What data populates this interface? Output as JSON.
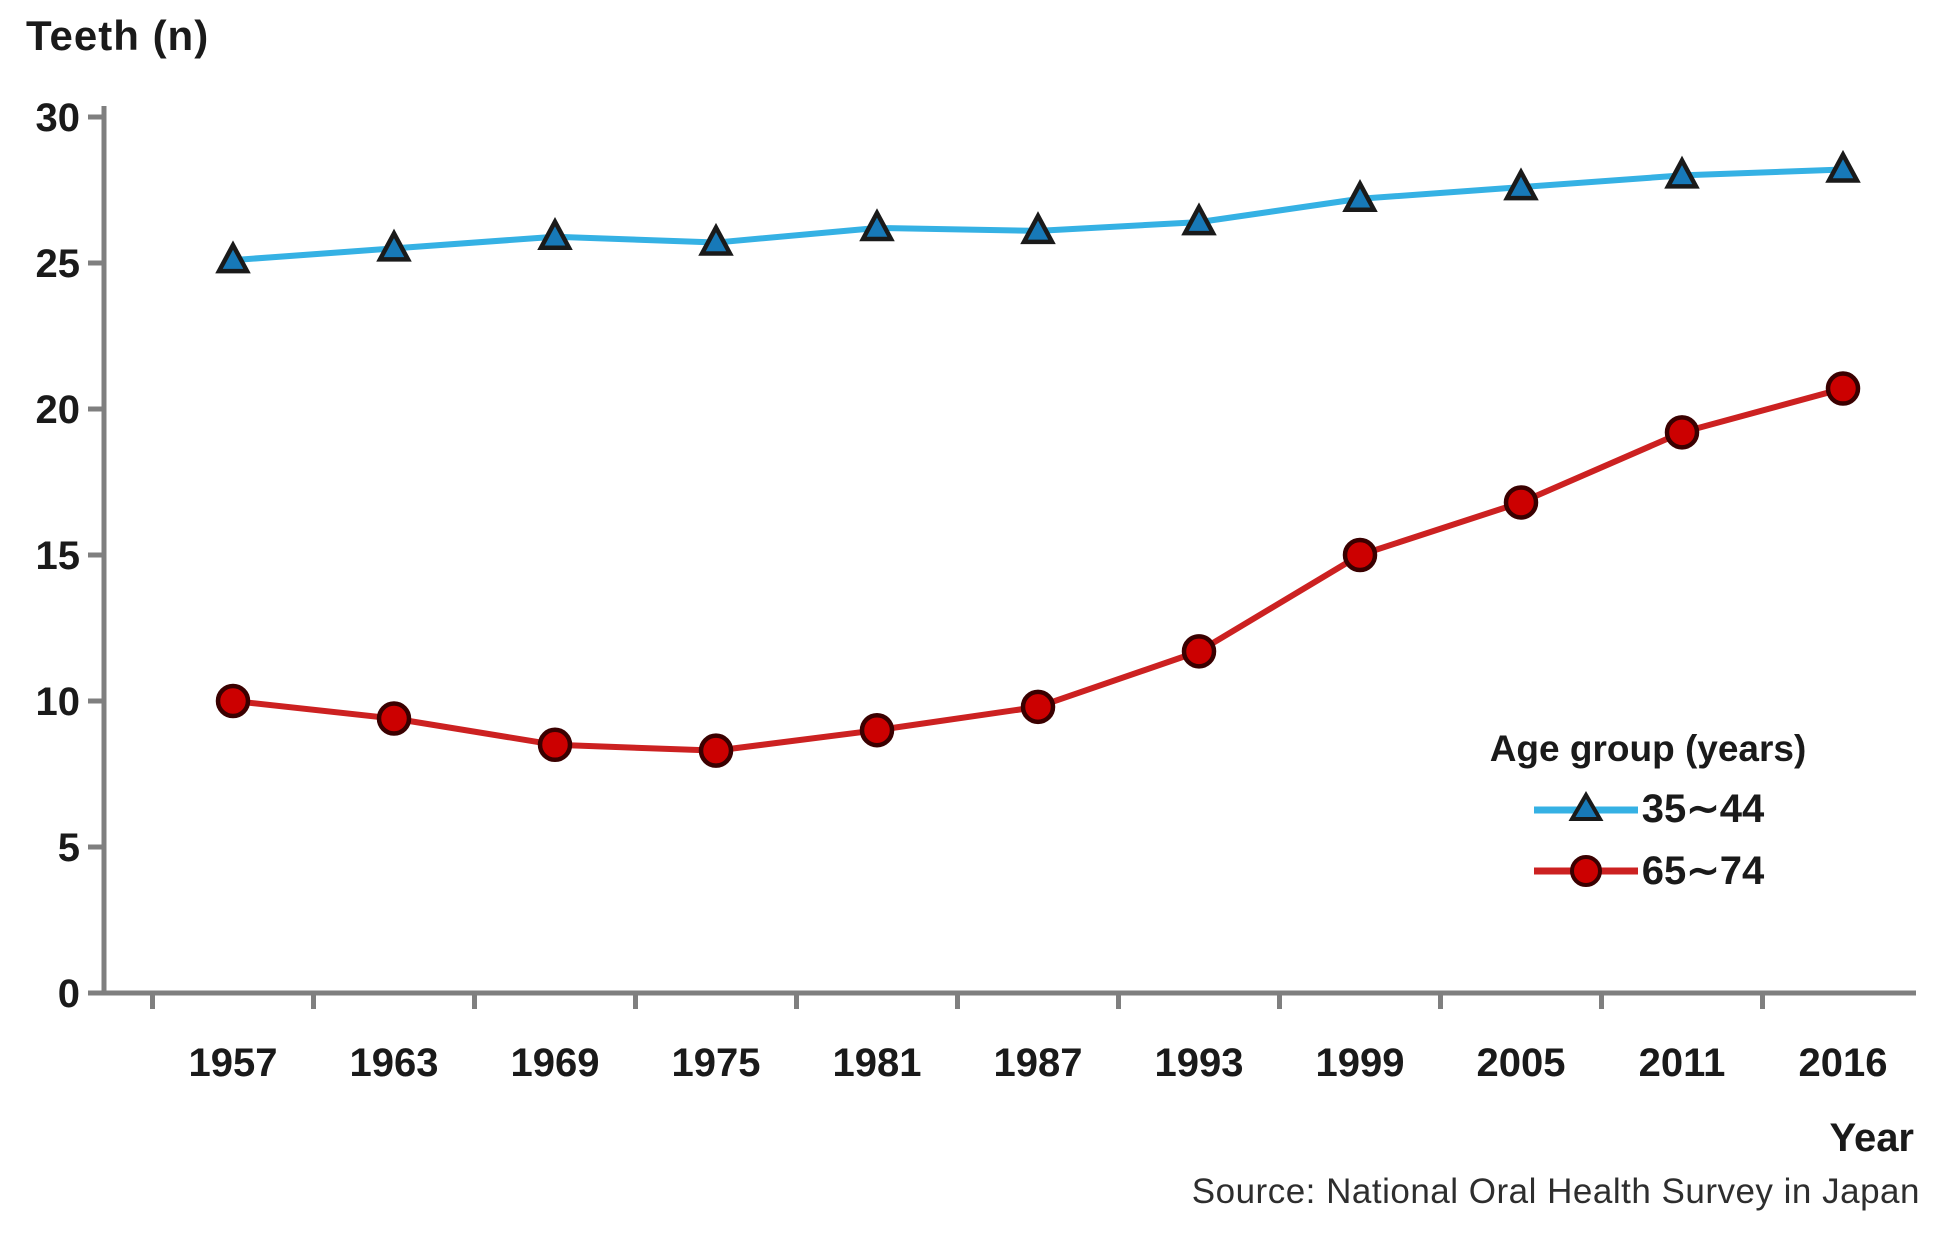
{
  "chart_data": {
    "type": "line",
    "title": "",
    "ylabel": "Teeth (n)",
    "xlabel": "Year",
    "source_note": "Source: National Oral Health Survey in Japan",
    "ylim": [
      0,
      30
    ],
    "yticks": [
      0,
      5,
      10,
      15,
      20,
      25,
      30
    ],
    "grid": false,
    "legend_position": "inside-right",
    "legend_title": "Age group (years)",
    "categories": [
      "1957",
      "1963",
      "1969",
      "1975",
      "1981",
      "1987",
      "1993",
      "1999",
      "2005",
      "2011",
      "2016"
    ],
    "series": [
      {
        "name": "35∼44",
        "marker": "triangle",
        "line_color": "#35b1e4",
        "marker_fill": "#1779b8",
        "marker_stroke": "#1a1a1a",
        "values": [
          25.1,
          25.5,
          25.9,
          25.7,
          26.2,
          26.1,
          26.4,
          27.2,
          27.6,
          28.0,
          28.2
        ]
      },
      {
        "name": "65∼74",
        "marker": "circle",
        "line_color": "#cc2121",
        "marker_fill": "#cc0000",
        "marker_stroke": "#3a0000",
        "values": [
          10.0,
          9.4,
          8.5,
          8.3,
          9.0,
          9.8,
          11.7,
          15.0,
          16.8,
          19.2,
          20.7
        ]
      }
    ],
    "axis_color": "#7f7f7f",
    "tick_label_color": "#1a1a1a"
  }
}
